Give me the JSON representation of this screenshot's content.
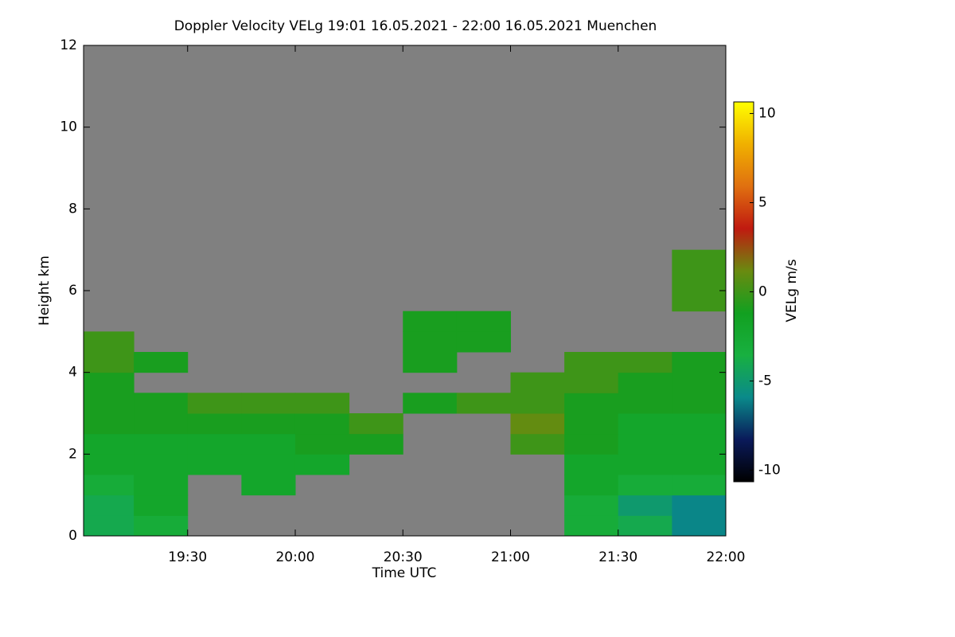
{
  "chart_data": {
    "type": "heatmap",
    "title": "Doppler Velocity VELg   19:01 16.05.2021 - 22:00 16.05.2021 Muenchen",
    "xlabel": "Time UTC",
    "ylabel": "Height km",
    "colorbar_label": "VELg m/s",
    "xlim": [
      19.0167,
      22.0
    ],
    "xticks": [
      {
        "value": 19.5,
        "label": "19:30"
      },
      {
        "value": 20.0,
        "label": "20:00"
      },
      {
        "value": 20.5,
        "label": "20:30"
      },
      {
        "value": 21.0,
        "label": "21:00"
      },
      {
        "value": 21.5,
        "label": "21:30"
      },
      {
        "value": 22.0,
        "label": "22:00"
      }
    ],
    "ylim": [
      0,
      12
    ],
    "yticks": [
      0,
      2,
      4,
      6,
      8,
      10,
      12
    ],
    "zlim": [
      -10.65,
      10.65
    ],
    "zticks": [
      -10,
      -5,
      0,
      5,
      10
    ],
    "colormap": [
      "#000000",
      "#0a1a5a",
      "#0a8a8a",
      "#18b040",
      "#12a020",
      "#6a8a10",
      "#c01a10",
      "#e07010",
      "#f0b000",
      "#ffff00"
    ],
    "nan_color": "#808080",
    "x_edges": [
      19.0167,
      19.25,
      19.5,
      19.75,
      20.0,
      20.25,
      20.5,
      20.75,
      21.0,
      21.25,
      21.5,
      21.75,
      22.0
    ],
    "y_edges": [
      0,
      0.5,
      1,
      1.5,
      2,
      2.5,
      3,
      3.5,
      4,
      4.5,
      5,
      5.5,
      6,
      6.5,
      7
    ],
    "z": [
      [
        -4,
        -3,
        null,
        null,
        null,
        null,
        null,
        null,
        null,
        -3,
        -4,
        -6
      ],
      [
        -4,
        -2,
        null,
        null,
        null,
        null,
        null,
        null,
        null,
        -3,
        -5,
        -6
      ],
      [
        -3,
        -2,
        null,
        -2,
        null,
        null,
        null,
        null,
        null,
        -2,
        -3,
        -3
      ],
      [
        -2,
        -2,
        -2,
        -2,
        -2,
        null,
        null,
        null,
        null,
        -2,
        -2,
        -2
      ],
      [
        -2,
        -2,
        -2,
        -2,
        -1,
        -1,
        null,
        null,
        0,
        -1,
        -2,
        -2
      ],
      [
        -1,
        -1,
        -1,
        -1,
        -1,
        0,
        null,
        null,
        1,
        -1,
        -2,
        -2
      ],
      [
        -1,
        -1,
        0,
        0,
        0,
        null,
        -1,
        0,
        0,
        -1,
        -1,
        -1
      ],
      [
        -1,
        null,
        null,
        null,
        null,
        null,
        null,
        null,
        0,
        0,
        -1,
        -1
      ],
      [
        0,
        -1,
        null,
        null,
        null,
        null,
        -1,
        null,
        null,
        0,
        0,
        -1
      ],
      [
        0,
        null,
        null,
        null,
        null,
        null,
        -1,
        -1,
        null,
        null,
        null,
        null
      ],
      [
        null,
        null,
        null,
        null,
        null,
        null,
        -1,
        -1,
        null,
        null,
        null,
        null
      ],
      [
        null,
        null,
        null,
        null,
        null,
        null,
        null,
        null,
        null,
        null,
        null,
        0
      ],
      [
        null,
        null,
        null,
        null,
        null,
        null,
        null,
        null,
        null,
        null,
        null,
        0
      ],
      [
        null,
        null,
        null,
        null,
        null,
        null,
        null,
        null,
        null,
        null,
        null,
        0
      ]
    ]
  }
}
